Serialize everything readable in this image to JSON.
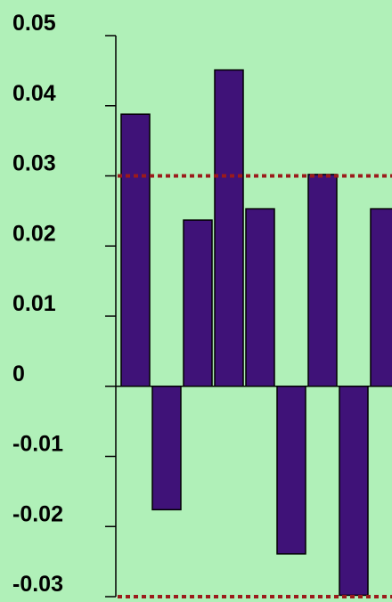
{
  "chart_data": {
    "type": "bar",
    "title": "",
    "xlabel": "",
    "ylabel": "",
    "ylim": [
      -0.03,
      0.05
    ],
    "yticks": [
      0.05,
      0.04,
      0.03,
      0.02,
      0.01,
      0,
      -0.01,
      -0.02,
      -0.03
    ],
    "ytick_labels": [
      "0.05",
      "0.04",
      "0.03",
      "0.02",
      "0.01",
      "0",
      "-0.01",
      "-0.02",
      "-0.03"
    ],
    "values": [
      0.0388,
      -0.0176,
      0.0237,
      0.0451,
      0.0253,
      -0.0239,
      0.0302,
      -0.0298,
      0.0253
    ],
    "reference_lines": [
      0.03,
      -0.03
    ],
    "grid": false,
    "legend": "none",
    "colors": {
      "background": "#b0f0b8",
      "bar_fill": "#3f1278",
      "bar_outline": "#000000",
      "reference_line": "#9b1b1b",
      "axis": "#000000",
      "text": "#000000"
    }
  }
}
